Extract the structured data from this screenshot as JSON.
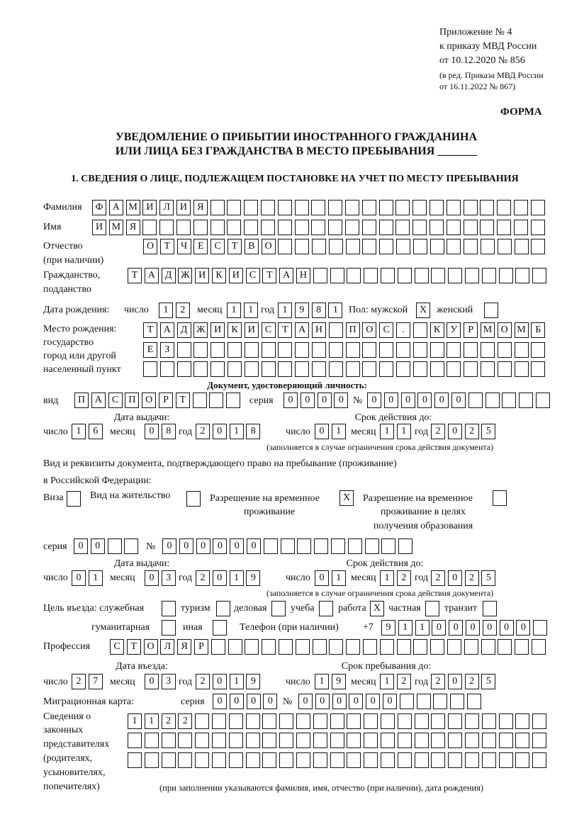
{
  "header": {
    "appendix": "Приложение № 4",
    "order": "к приказу МВД России",
    "date": "от 10.12.2020 № 856",
    "revision1": "(в ред. Приказа МВД России",
    "revision2": "от 16.11.2022 № 867)",
    "form": "ФОРМА",
    "title1": "УВЕДОМЛЕНИЕ О ПРИБЫТИИ ИНОСТРАННОГО ГРАЖДАНИНА",
    "title2": "ИЛИ ЛИЦА БЕЗ ГРАЖДАНСТВА В МЕСТО ПРЕБЫВАНИЯ _______",
    "section1": "1. СВЕДЕНИЯ О ЛИЦЕ, ПОДЛЕЖАЩЕМ ПОСТАНОВКЕ НА УЧЕТ ПО МЕСТУ ПРЕБЫВАНИЯ"
  },
  "person": {
    "surname_label": "Фамилия",
    "surname": "ФАМИЛИЯ",
    "name_label": "Имя",
    "name": "ИМЯ",
    "patronymic_label1": "Отчество",
    "patronymic_label2": "(при наличии)",
    "patronymic": "ОТЧЕСТВО",
    "citizenship_label1": "Гражданство,",
    "citizenship_label2": "подданство",
    "citizenship": "ТАДЖИКИСТАН",
    "birth_label": "Дата рождения:",
    "day_label": "число",
    "month_label": "месяц",
    "year_label": "год",
    "birth_day": "12",
    "birth_month": "11",
    "birth_year": "1981",
    "sex_label": "Пол: мужской",
    "male": "X",
    "female_label": "женский",
    "female": "",
    "birthplace_label1": "Место рождения:",
    "birthplace_label2": "государство",
    "birthplace_label3": "город или другой",
    "birthplace_label4": "населенный пункт",
    "birthplace_row1": "ТАДЖИКИСТАН ПОС. КУРМОМБ",
    "birthplace_row2": "ЕЗ",
    "birthplace_row3": ""
  },
  "id_document": {
    "heading": "Документ, удостоверяющий личность:",
    "type_label": "вид",
    "type": "ПАСПОРТ",
    "series_label": "серия",
    "series": "0000",
    "number_label": "№",
    "number": "000000",
    "issue_label": "Дата выдачи:",
    "valid_label": "Срок действия до:",
    "issue_day": "16",
    "issue_month": "08",
    "issue_year": "2018",
    "valid_day": "01",
    "valid_month": "11",
    "valid_year": "2025",
    "note": "(заполняется в случае ограничения срока действия документа)"
  },
  "stay_document": {
    "text1": "Вид и реквизиты документа, подтверждающего право на пребывание (проживание)",
    "text2": "в Российской Федерации:",
    "visa_label": "Виза",
    "visa": "",
    "residence_label": "Вид на жительство",
    "residence": "",
    "temp_label1": "Разрешение на временное",
    "temp_label2": "проживание",
    "temp": "X",
    "edu_label1": "Разрешение на временное",
    "edu_label2": "проживание в целях",
    "edu_label3": "получения образования",
    "edu": "",
    "series_label": "серия",
    "series": "00",
    "number_label": "№",
    "number": "000000",
    "issue_label": "Дата выдачи:",
    "valid_label": "Срок действия до:",
    "issue_day": "01",
    "issue_month": "03",
    "issue_year": "2019",
    "valid_day": "01",
    "valid_month": "12",
    "valid_year": "2025",
    "note": "(заполняется в случае ограничения срока действия документа)"
  },
  "purpose": {
    "label": "Цель въезда: служебная",
    "service": "",
    "tourism_label": "туризм",
    "tourism": "",
    "business_label": "деловая",
    "business": "",
    "study_label": "учеба",
    "study": "",
    "work_label": "работа",
    "work": "X",
    "private_label": "частная",
    "private": "",
    "transit_label": "транзит",
    "transit": "",
    "humanitarian_label": "гуманитарная",
    "humanitarian": "",
    "other_label": "иная",
    "other": "",
    "phone_label": "Телефон (при наличии)",
    "phone_prefix": "+7",
    "phone": "911000000"
  },
  "profession": {
    "label": "Профессия",
    "value": "СТОЛЯР"
  },
  "entry": {
    "entry_label": "Дата въезда:",
    "stay_label": "Срок пребывания до:",
    "entry_day": "27",
    "entry_month": "03",
    "entry_year": "2019",
    "stay_day": "19",
    "stay_month": "12",
    "stay_year": "2025"
  },
  "migration_card": {
    "label": "Миграционная карта:",
    "series_label": "серия",
    "series": "0000",
    "number_label": "№",
    "number": "000000"
  },
  "representatives": {
    "label1": "Сведения о",
    "label2": "законных",
    "label3": "представителях",
    "label4": "(родителях,",
    "label5": "усыновителях,",
    "label6": "попечителях)",
    "row1": "1122",
    "row2": "",
    "row3": "",
    "note": "(при заполнении указываются фамилия, имя, отчество (при наличии), дата рождения)"
  }
}
